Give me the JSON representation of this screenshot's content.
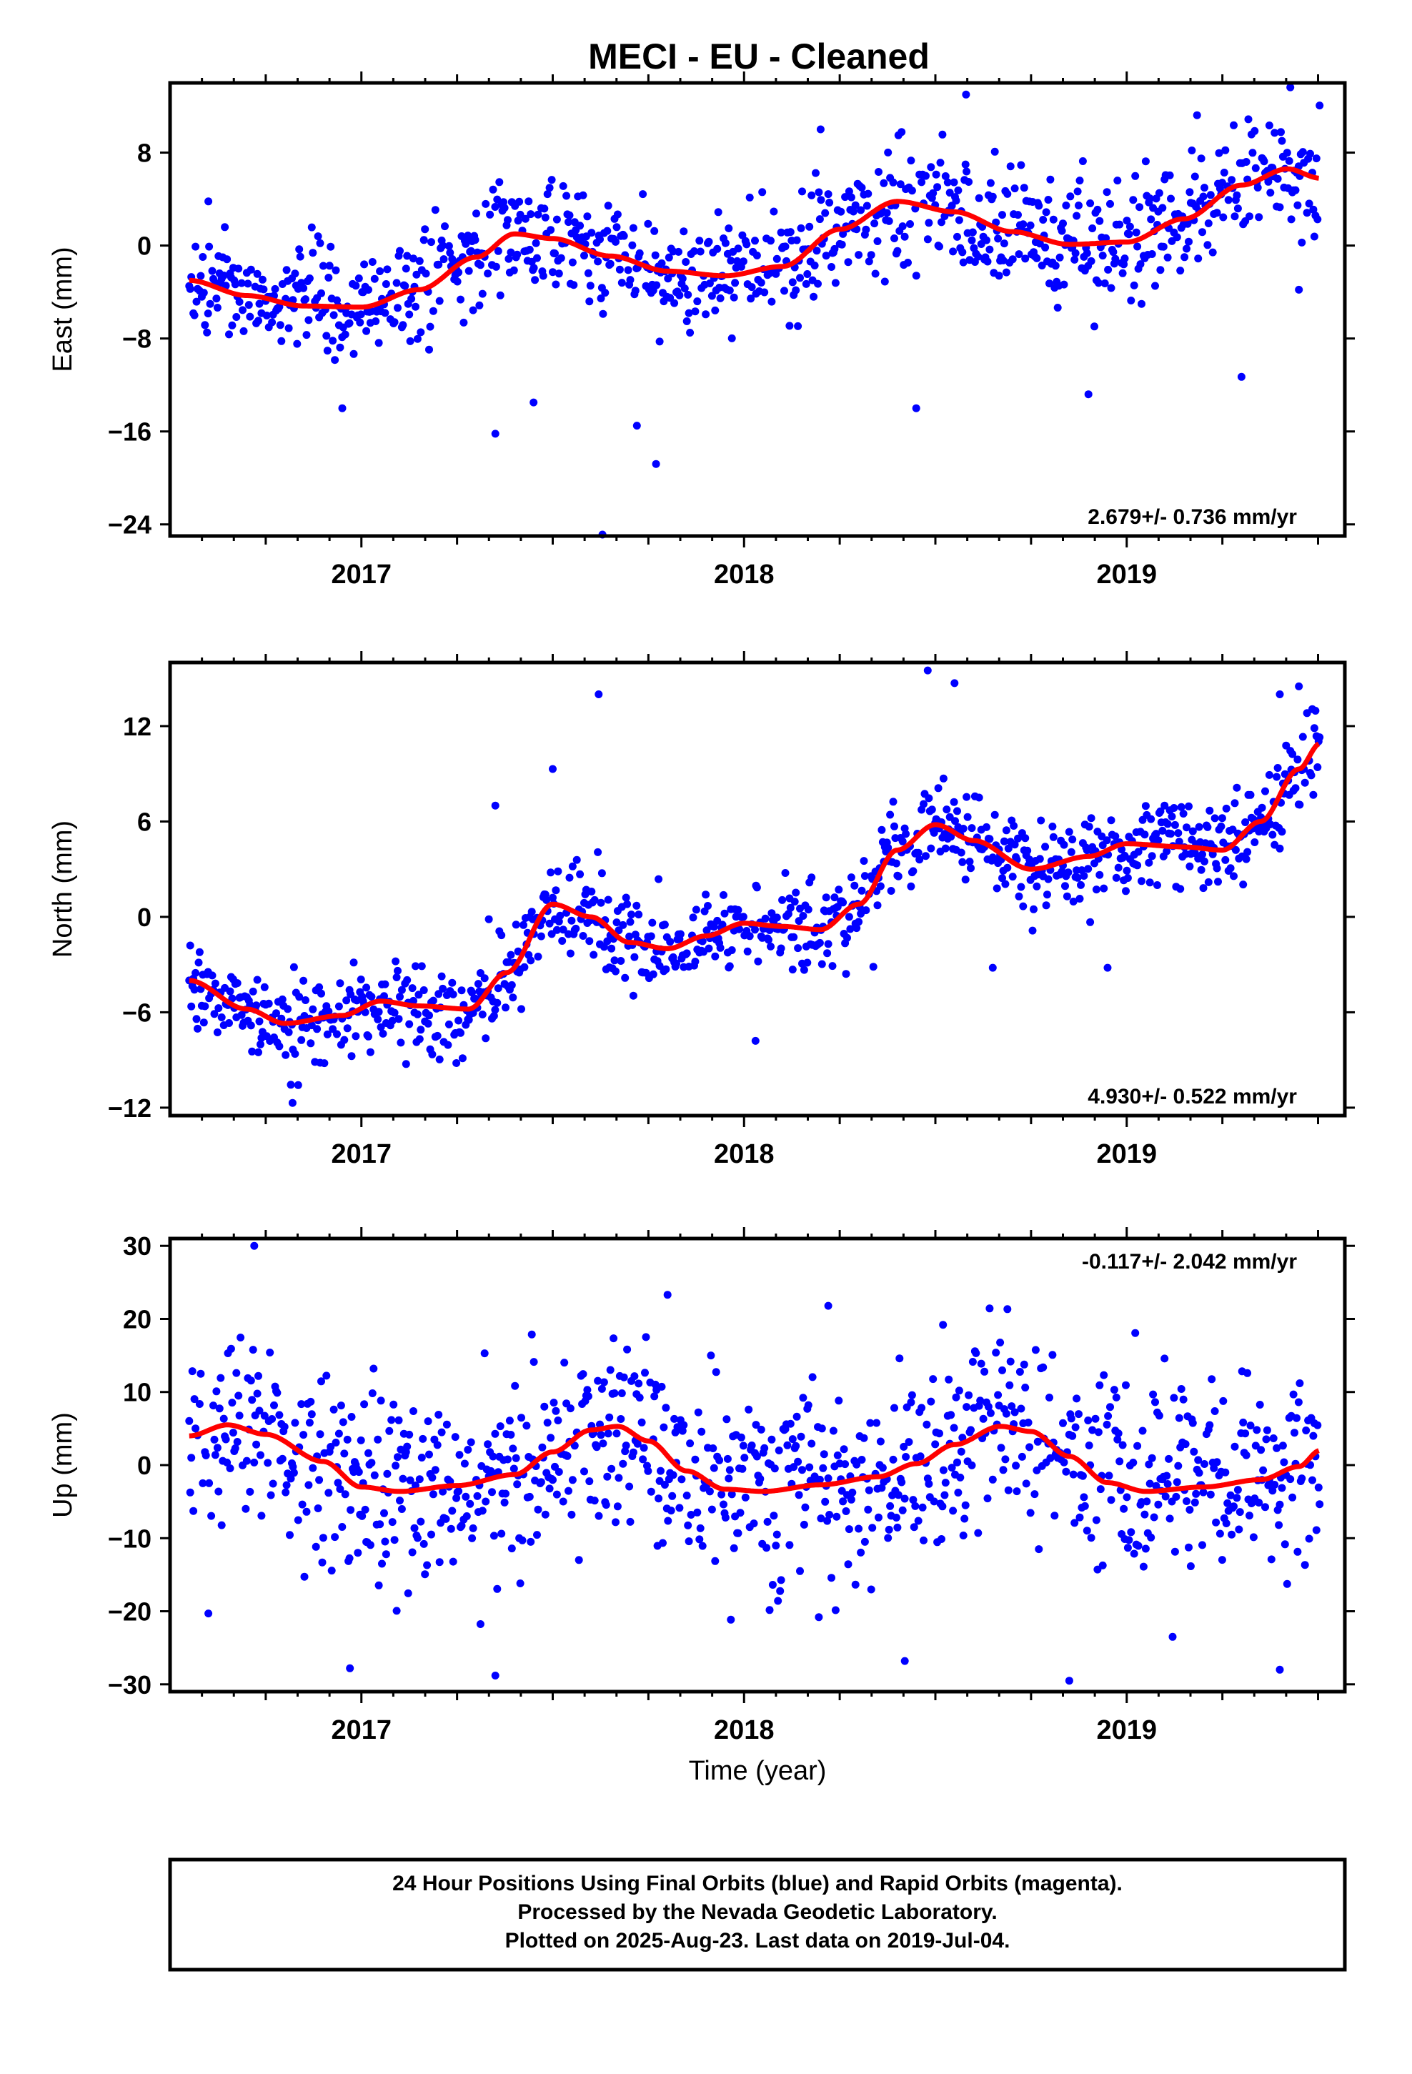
{
  "title": "MECI  - EU - Cleaned",
  "x_axis_label": "Time (year)",
  "footer": {
    "line1": "24 Hour Positions Using Final Orbits (blue) and Rapid Orbits (magenta).",
    "line2": "Processed by the Nevada Geodetic Laboratory.",
    "line3": "Plotted on 2025-Aug-23. Last data on 2019-Jul-04."
  },
  "colors": {
    "points": "#0000ff",
    "fit": "#ff0000"
  },
  "chart_data": [
    {
      "type": "scatter",
      "component": "east",
      "ylabel": "East (mm)",
      "xlim": [
        2016.5,
        2019.57
      ],
      "ylim": [
        -25,
        14
      ],
      "yticks": [
        -24,
        -16,
        -8,
        0,
        8
      ],
      "xticks": [
        2017,
        2018,
        2019
      ],
      "x_range_data": [
        2016.55,
        2019.505
      ],
      "rate_label": "2.679+/- 0.736 mm/yr",
      "rate_position": "bottom-right",
      "noise_sd": 2.6,
      "fit_knots": [
        [
          2016.55,
          -3.0
        ],
        [
          2016.7,
          -4.3
        ],
        [
          2016.85,
          -5.2
        ],
        [
          2017.0,
          -5.3
        ],
        [
          2017.15,
          -3.8
        ],
        [
          2017.3,
          -1.0
        ],
        [
          2017.4,
          1.0
        ],
        [
          2017.5,
          0.6
        ],
        [
          2017.65,
          -0.9
        ],
        [
          2017.8,
          -2.2
        ],
        [
          2017.95,
          -2.6
        ],
        [
          2018.1,
          -1.8
        ],
        [
          2018.25,
          1.4
        ],
        [
          2018.4,
          3.8
        ],
        [
          2018.55,
          2.9
        ],
        [
          2018.7,
          1.2
        ],
        [
          2018.85,
          0.1
        ],
        [
          2019.0,
          0.3
        ],
        [
          2019.15,
          2.3
        ],
        [
          2019.3,
          5.2
        ],
        [
          2019.42,
          6.6
        ],
        [
          2019.505,
          5.8
        ]
      ],
      "outliers": [
        [
          2016.6,
          3.8
        ],
        [
          2016.95,
          -14.0
        ],
        [
          2017.35,
          -16.2
        ],
        [
          2017.45,
          -13.5
        ],
        [
          2017.63,
          -25.0
        ],
        [
          2017.72,
          -15.5
        ],
        [
          2017.77,
          -18.8
        ],
        [
          2018.2,
          10.0
        ],
        [
          2018.45,
          -14.0
        ],
        [
          2018.58,
          13.0
        ],
        [
          2018.9,
          -12.8
        ],
        [
          2019.3,
          -11.3
        ],
        [
          2019.45,
          -3.8
        ]
      ]
    },
    {
      "type": "scatter",
      "component": "north",
      "ylabel": "North (mm)",
      "xlim": [
        2016.5,
        2019.57
      ],
      "ylim": [
        -12.5,
        16
      ],
      "yticks": [
        -12,
        -6,
        0,
        6,
        12
      ],
      "xticks": [
        2017,
        2018,
        2019
      ],
      "x_range_data": [
        2016.55,
        2019.505
      ],
      "rate_label": "4.930+/- 0.522 mm/yr",
      "rate_position": "bottom-right",
      "noise_sd": 1.4,
      "fit_knots": [
        [
          2016.55,
          -4.0
        ],
        [
          2016.7,
          -5.8
        ],
        [
          2016.8,
          -6.7
        ],
        [
          2016.95,
          -6.2
        ],
        [
          2017.05,
          -5.3
        ],
        [
          2017.15,
          -5.6
        ],
        [
          2017.28,
          -5.8
        ],
        [
          2017.38,
          -3.5
        ],
        [
          2017.5,
          0.8
        ],
        [
          2017.6,
          0.0
        ],
        [
          2017.7,
          -1.6
        ],
        [
          2017.8,
          -2.0
        ],
        [
          2017.9,
          -1.2
        ],
        [
          2018.0,
          -0.4
        ],
        [
          2018.1,
          -0.6
        ],
        [
          2018.2,
          -0.8
        ],
        [
          2018.3,
          0.8
        ],
        [
          2018.4,
          4.2
        ],
        [
          2018.5,
          5.8
        ],
        [
          2018.6,
          4.8
        ],
        [
          2018.75,
          3.0
        ],
        [
          2018.9,
          3.8
        ],
        [
          2019.0,
          4.6
        ],
        [
          2019.15,
          4.4
        ],
        [
          2019.25,
          4.2
        ],
        [
          2019.35,
          6.0
        ],
        [
          2019.45,
          9.3
        ],
        [
          2019.505,
          10.9
        ]
      ],
      "outliers": [
        [
          2016.82,
          -11.7
        ],
        [
          2017.35,
          7.0
        ],
        [
          2017.5,
          9.3
        ],
        [
          2017.62,
          14.0
        ],
        [
          2018.03,
          -7.8
        ],
        [
          2018.48,
          15.5
        ],
        [
          2018.55,
          14.7
        ],
        [
          2018.65,
          -3.2
        ],
        [
          2018.95,
          -3.2
        ],
        [
          2019.4,
          14.0
        ],
        [
          2019.45,
          14.5
        ],
        [
          2019.4,
          4.3
        ]
      ]
    },
    {
      "type": "scatter",
      "component": "up",
      "ylabel": "Up (mm)",
      "xlim": [
        2016.5,
        2019.57
      ],
      "ylim": [
        -31,
        31
      ],
      "yticks": [
        -30,
        -20,
        -10,
        0,
        10,
        20,
        30
      ],
      "xticks": [
        2017,
        2018,
        2019
      ],
      "x_range_data": [
        2016.55,
        2019.505
      ],
      "rate_label": "-0.117+/- 2.042 mm/yr",
      "rate_position": "top-right",
      "noise_sd": 6.5,
      "fit_knots": [
        [
          2016.55,
          4.0
        ],
        [
          2016.65,
          5.5
        ],
        [
          2016.75,
          4.2
        ],
        [
          2016.9,
          0.5
        ],
        [
          2017.0,
          -3.0
        ],
        [
          2017.1,
          -3.6
        ],
        [
          2017.25,
          -2.8
        ],
        [
          2017.4,
          -1.3
        ],
        [
          2017.5,
          1.8
        ],
        [
          2017.6,
          4.8
        ],
        [
          2017.67,
          5.3
        ],
        [
          2017.75,
          3.3
        ],
        [
          2017.85,
          -0.8
        ],
        [
          2017.95,
          -3.3
        ],
        [
          2018.05,
          -3.6
        ],
        [
          2018.2,
          -2.7
        ],
        [
          2018.35,
          -1.6
        ],
        [
          2018.45,
          0.2
        ],
        [
          2018.55,
          2.8
        ],
        [
          2018.67,
          5.3
        ],
        [
          2018.75,
          4.6
        ],
        [
          2018.85,
          1.2
        ],
        [
          2018.95,
          -2.4
        ],
        [
          2019.05,
          -3.6
        ],
        [
          2019.2,
          -3.0
        ],
        [
          2019.35,
          -2.0
        ],
        [
          2019.45,
          -0.2
        ],
        [
          2019.505,
          2.0
        ]
      ],
      "outliers": [
        [
          2016.72,
          30.0
        ],
        [
          2016.97,
          -27.8
        ],
        [
          2017.35,
          -28.8
        ],
        [
          2017.8,
          23.3
        ],
        [
          2018.22,
          21.8
        ],
        [
          2018.42,
          -26.8
        ],
        [
          2018.52,
          19.2
        ],
        [
          2018.85,
          -29.5
        ],
        [
          2019.12,
          -23.5
        ],
        [
          2019.4,
          -28.0
        ],
        [
          2016.6,
          -20.3
        ]
      ]
    }
  ]
}
